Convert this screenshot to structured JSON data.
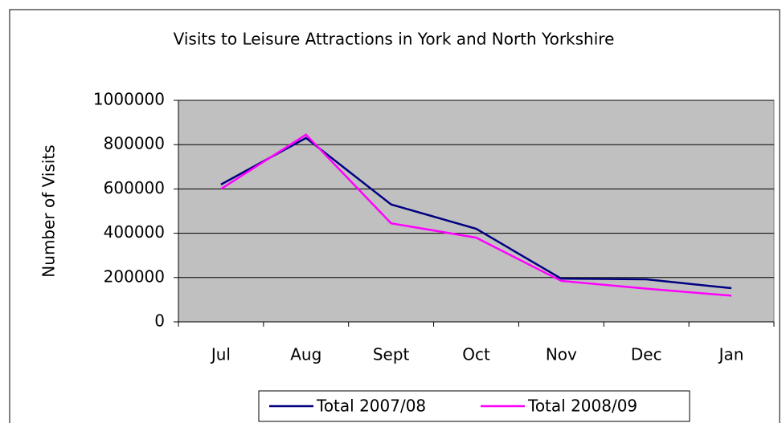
{
  "chart_data": {
    "type": "line",
    "title": "Visits to Leisure Attractions in York and North Yorkshire",
    "y_label": "Number of Visits",
    "categories": [
      "Jul",
      "Aug",
      "Sept",
      "Oct",
      "Nov",
      "Dec",
      "Jan"
    ],
    "series": [
      {
        "name": "Total 2007/08",
        "color": "#000080",
        "values": [
          620000,
          830000,
          530000,
          420000,
          195000,
          192000,
          152000
        ]
      },
      {
        "name": "Total 2008/09",
        "color": "#ff00ff",
        "values": [
          600000,
          845000,
          445000,
          380000,
          185000,
          150000,
          118000
        ]
      }
    ],
    "ylim": [
      0,
      1000000
    ],
    "yticks": [
      0,
      200000,
      400000,
      600000,
      800000,
      1000000
    ],
    "grid": true,
    "legend": "bottom"
  }
}
